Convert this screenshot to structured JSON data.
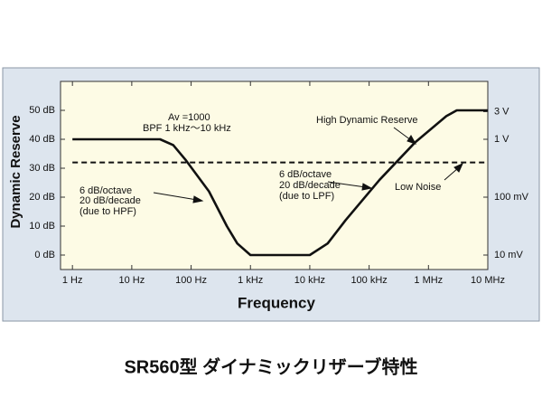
{
  "chart_data": {
    "type": "line",
    "x_label": "Frequency",
    "y_label": "Dynamic Reserve",
    "caption": "SR560型 ダイナミックリザーブ特性",
    "x_scale": "log",
    "y2_scale": "log",
    "xlim": [
      0.63,
      10000000
    ],
    "xticks": [
      {
        "value": 1,
        "label": "1 Hz"
      },
      {
        "value": 10,
        "label": "10 Hz"
      },
      {
        "value": 100,
        "label": "100 Hz"
      },
      {
        "value": 1000,
        "label": "1 kHz"
      },
      {
        "value": 10000,
        "label": "10 kHz"
      },
      {
        "value": 100000,
        "label": "100 kHz"
      },
      {
        "value": 1000000,
        "label": "1 MHz"
      },
      {
        "value": 10000000,
        "label": "10 MHz"
      }
    ],
    "ylim": [
      -5,
      60
    ],
    "yticks": [
      {
        "value": 0,
        "label": "0 dB"
      },
      {
        "value": 10,
        "label": "10 dB"
      },
      {
        "value": 20,
        "label": "20 dB"
      },
      {
        "value": 30,
        "label": "30 dB"
      },
      {
        "value": 40,
        "label": "40 dB"
      },
      {
        "value": 50,
        "label": "50 dB"
      }
    ],
    "y2lim": [
      0.005623,
      10
    ],
    "y2ticks": [
      {
        "value": 3,
        "label": "3 V"
      },
      {
        "value": 1,
        "label": "1 V"
      },
      {
        "value": 0.1,
        "label": "100 mV"
      },
      {
        "value": 0.01,
        "label": "10 mV"
      }
    ],
    "series": [
      {
        "name": "High Dynamic Reserve",
        "color": "#111111",
        "style": "solid",
        "x": [
          1,
          30,
          50,
          80,
          200,
          400,
          600,
          1000,
          10000,
          20000,
          40000,
          150000,
          600000,
          2000000,
          3000000,
          10000000
        ],
        "values": [
          40,
          40,
          38,
          33,
          22,
          10,
          4,
          0,
          0,
          4,
          12,
          26,
          39,
          48,
          50,
          50
        ]
      },
      {
        "name": "Low Noise",
        "color": "#111111",
        "style": "dashed",
        "x": [
          1,
          10000000
        ],
        "values": [
          32,
          32
        ]
      }
    ],
    "annotations": [
      "Av  =1000",
      "BPF 1 kHz～10 kHz",
      "6 dB/octave",
      "20 dB/decade",
      "(due to HPF)",
      "6 dB/octave",
      "20 dB/decade",
      "(due to LPF)"
    ]
  }
}
